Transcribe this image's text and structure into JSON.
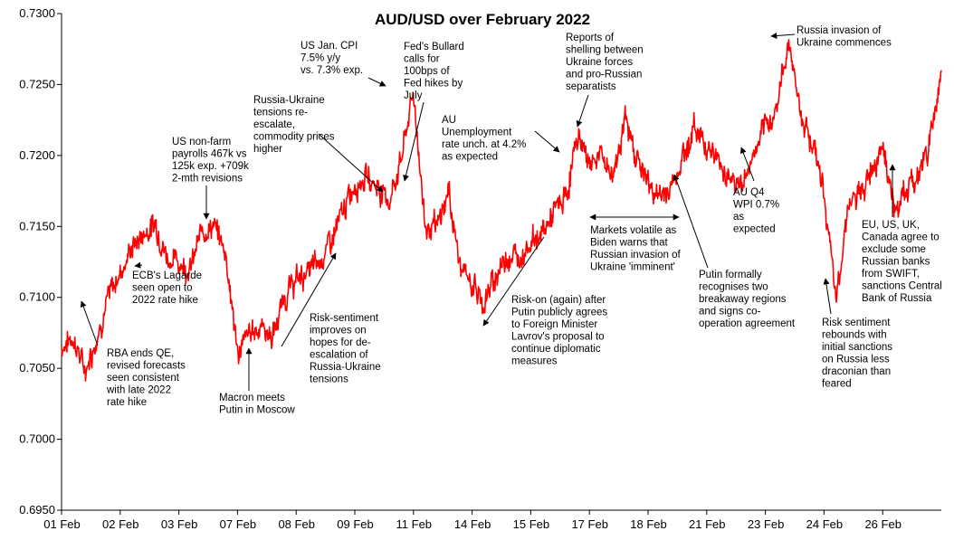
{
  "chart_data": {
    "type": "line",
    "title": "AUD/USD over February 2022",
    "xlabel": "",
    "ylabel": "",
    "ylim": [
      0.695,
      0.73
    ],
    "grid": false,
    "legend": "none",
    "line_color": "#ff0000",
    "y_ticks": [
      "0.6950",
      "0.7000",
      "0.7050",
      "0.7100",
      "0.7150",
      "0.7200",
      "0.7250",
      "0.7300"
    ],
    "x_ticks": [
      "01 Feb",
      "02 Feb",
      "03 Feb",
      "07 Feb",
      "08 Feb",
      "09 Feb",
      "11 Feb",
      "14 Feb",
      "15 Feb",
      "17 Feb",
      "18 Feb",
      "21 Feb",
      "23 Feb",
      "24 Feb",
      "26 Feb"
    ],
    "series": [
      {
        "x": [
          0,
          0.2,
          0.4,
          0.6,
          0.8,
          1.0,
          1.2,
          1.4,
          1.6,
          1.8,
          2.0,
          2.2,
          2.4,
          2.6,
          2.8,
          3.0,
          3.2,
          3.4,
          3.6,
          3.8,
          4.0,
          4.2,
          4.4,
          4.6,
          4.8,
          5.0,
          5.2,
          5.4,
          5.6,
          5.8,
          6.0,
          6.2,
          6.4,
          6.6,
          6.8,
          7.0,
          7.2,
          7.4,
          7.6,
          7.8,
          8.0,
          8.2,
          8.4,
          8.6,
          8.8,
          9.0,
          9.2,
          9.4,
          9.6,
          9.8,
          10.0,
          10.2,
          10.4,
          10.6,
          10.8,
          11.0,
          11.2,
          11.4,
          11.6,
          11.8,
          12.0,
          12.2,
          12.4,
          12.6,
          12.8,
          13.0,
          13.2,
          13.4,
          13.6,
          13.8,
          14.0,
          14.2,
          14.4,
          14.6,
          14.8,
          15.0
        ],
        "y": [
          0.7065,
          0.7072,
          0.7048,
          0.7072,
          0.71,
          0.7118,
          0.7135,
          0.7145,
          0.7152,
          0.7128,
          0.7125,
          0.712,
          0.7148,
          0.715,
          0.7132,
          0.706,
          0.7075,
          0.708,
          0.7072,
          0.71,
          0.7112,
          0.7118,
          0.7125,
          0.714,
          0.716,
          0.718,
          0.7185,
          0.7178,
          0.7168,
          0.72,
          0.7245,
          0.715,
          0.7148,
          0.7175,
          0.712,
          0.711,
          0.7095,
          0.7115,
          0.713,
          0.7128,
          0.714,
          0.7145,
          0.716,
          0.717,
          0.7215,
          0.7195,
          0.72,
          0.7185,
          0.7225,
          0.72,
          0.718,
          0.717,
          0.7178,
          0.72,
          0.722,
          0.7208,
          0.7195,
          0.7185,
          0.7178,
          0.72,
          0.7218,
          0.7235,
          0.7282,
          0.723,
          0.721,
          0.7175,
          0.7095,
          0.7165,
          0.717,
          0.719,
          0.721,
          0.716,
          0.7175,
          0.7185,
          0.721,
          0.726
        ]
      }
    ],
    "annotations": [
      {
        "lines": [
          "RBA ends QE,",
          "revised forecasts",
          "seen consistent",
          "with late 2022",
          "rate hike"
        ]
      },
      {
        "lines": [
          "ECB's Lagarde",
          "seen open to",
          "2022 rate hike"
        ]
      },
      {
        "lines": [
          "US non-farm",
          "payrolls 467k vs",
          "125k exp. +709k",
          "2-mth revisions"
        ]
      },
      {
        "lines": [
          "Macron meets",
          "Putin in Moscow"
        ]
      },
      {
        "lines": [
          "Risk-sentiment",
          "improves on",
          "hopes for de-",
          "escalation of",
          "Russia-Ukraine",
          "tensions"
        ]
      },
      {
        "lines": [
          "Russia-Ukraine",
          "tensions re-",
          "escalate,",
          "commodity prices",
          "higher"
        ]
      },
      {
        "lines": [
          "US Jan. CPI",
          "7.5% y/y",
          "vs. 7.3% exp."
        ]
      },
      {
        "lines": [
          "Fed's Bullard",
          "calls for",
          "100bps of",
          "Fed hikes by",
          "July"
        ]
      },
      {
        "lines": [
          "AU",
          "Unemployment",
          "rate unch. at 4.2%",
          "as expected"
        ]
      },
      {
        "lines": [
          "Risk-on (again) after",
          "Putin publicly agrees",
          "to Foreign Minister",
          "Lavrov's proposal to",
          "continue diplomatic",
          "measures"
        ]
      },
      {
        "lines": [
          "Reports of",
          "shelling between",
          "Ukraine forces",
          "and pro-Russian",
          "separatists"
        ]
      },
      {
        "lines": [
          "Markets volatile as",
          "Biden warns  that",
          "Russian invasion of",
          "Ukraine 'imminent'"
        ]
      },
      {
        "lines": [
          "Putin formally",
          "recognises two",
          "breakaway regions",
          "and signs co-",
          "operation agreement"
        ]
      },
      {
        "lines": [
          "AU Q4",
          "WPI 0.7%",
          "as",
          "expected"
        ]
      },
      {
        "lines": [
          "Russia invasion of",
          "Ukraine commences"
        ]
      },
      {
        "lines": [
          "Risk sentiment",
          "rebounds with",
          "initial sanctions",
          "on Russia less",
          "draconian than",
          "feared"
        ]
      },
      {
        "lines": [
          "EU, US, UK,",
          "Canada agree to",
          "exclude some",
          "Russian banks",
          "from SWIFT,",
          "sanctions Central",
          "Bank of Russia"
        ]
      }
    ]
  }
}
